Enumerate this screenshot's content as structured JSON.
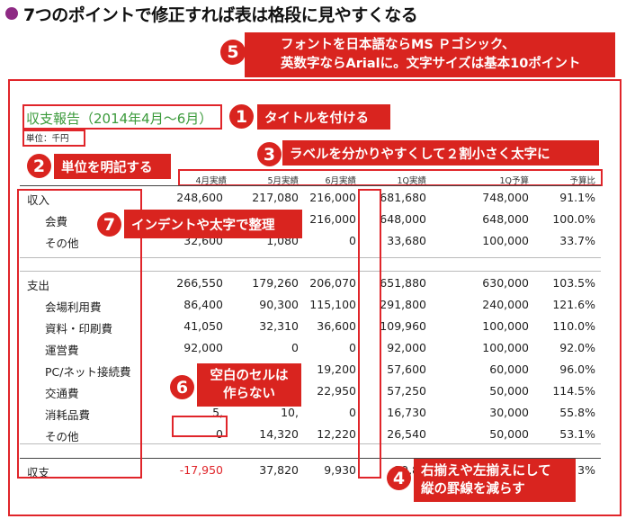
{
  "headline": "7つのポイントで修正すれば表は格段に見やすくなる",
  "report": {
    "title": "収支報告（2014年4月〜6月）",
    "unit": "単位：千円",
    "headers": [
      "4月実績",
      "5月実績",
      "6月実績",
      "1Q実績",
      "1Q予算",
      "予算比"
    ],
    "rows": [
      {
        "label": "収入",
        "cells": [
          "248,600",
          "217,080",
          "216,000",
          "681,680",
          "748,000",
          "91.1%"
        ]
      },
      {
        "label": "会費",
        "cells": [
          "",
          "",
          "216,000",
          "648,000",
          "648,000",
          "100.0%"
        ]
      },
      {
        "label": "その他",
        "cells": [
          "32,600",
          "1,080",
          "0",
          "33,680",
          "100,000",
          "33.7%"
        ]
      },
      {
        "label": "支出",
        "cells": [
          "266,550",
          "179,260",
          "206,070",
          "651,880",
          "630,000",
          "103.5%"
        ]
      },
      {
        "label": "会場利用費",
        "cells": [
          "86,400",
          "90,300",
          "115,100",
          "291,800",
          "240,000",
          "121.6%"
        ]
      },
      {
        "label": "資料・印刷費",
        "cells": [
          "41,050",
          "32,310",
          "36,600",
          "109,960",
          "100,000",
          "110.0%"
        ]
      },
      {
        "label": "運営費",
        "cells": [
          "92,000",
          "0",
          "0",
          "92,000",
          "100,000",
          "92.0%"
        ]
      },
      {
        "label": "PC/ネット接続費",
        "cells": [
          "19,",
          "",
          "19,200",
          "57,600",
          "60,000",
          "96.0%"
        ]
      },
      {
        "label": "交通費",
        "cells": [
          "",
          "",
          "22,950",
          "57,250",
          "50,000",
          "114.5%"
        ]
      },
      {
        "label": "消耗品費",
        "cells": [
          "5,",
          "10,",
          "0",
          "16,730",
          "30,000",
          "55.8%"
        ]
      },
      {
        "label": "その他",
        "cells": [
          "0",
          "14,320",
          "12,220",
          "26,540",
          "50,000",
          "53.1%"
        ]
      },
      {
        "label": "収支",
        "cells": [
          "-17,950",
          "37,820",
          "9,930",
          "29,80",
          "",
          "3%"
        ]
      }
    ]
  },
  "callouts": {
    "c1": {
      "num": "1",
      "text": "タイトルを付ける"
    },
    "c2": {
      "num": "2",
      "text": "単位を明記する"
    },
    "c3": {
      "num": "3",
      "text": "ラベルを分かりやすくして２割小さく太字に"
    },
    "c4": {
      "num": "4",
      "line1": "右揃えや左揃えにして",
      "line2": "縦の罫線を減らす"
    },
    "c5": {
      "num": "5",
      "line1": "フォントを日本語ならMS Ｐゴシック、",
      "line2": "英数字ならArialに。文字サイズは基本10ポイント"
    },
    "c6": {
      "num": "6",
      "line1": "空白のセルは",
      "line2": "作らない"
    },
    "c7": {
      "num": "7",
      "text": "インデントや太字で整理"
    }
  },
  "colors": {
    "accent": "#d9241f",
    "title_green": "#3a9a3a",
    "bullet": "#8e2a84",
    "negative": "#e0252a"
  }
}
